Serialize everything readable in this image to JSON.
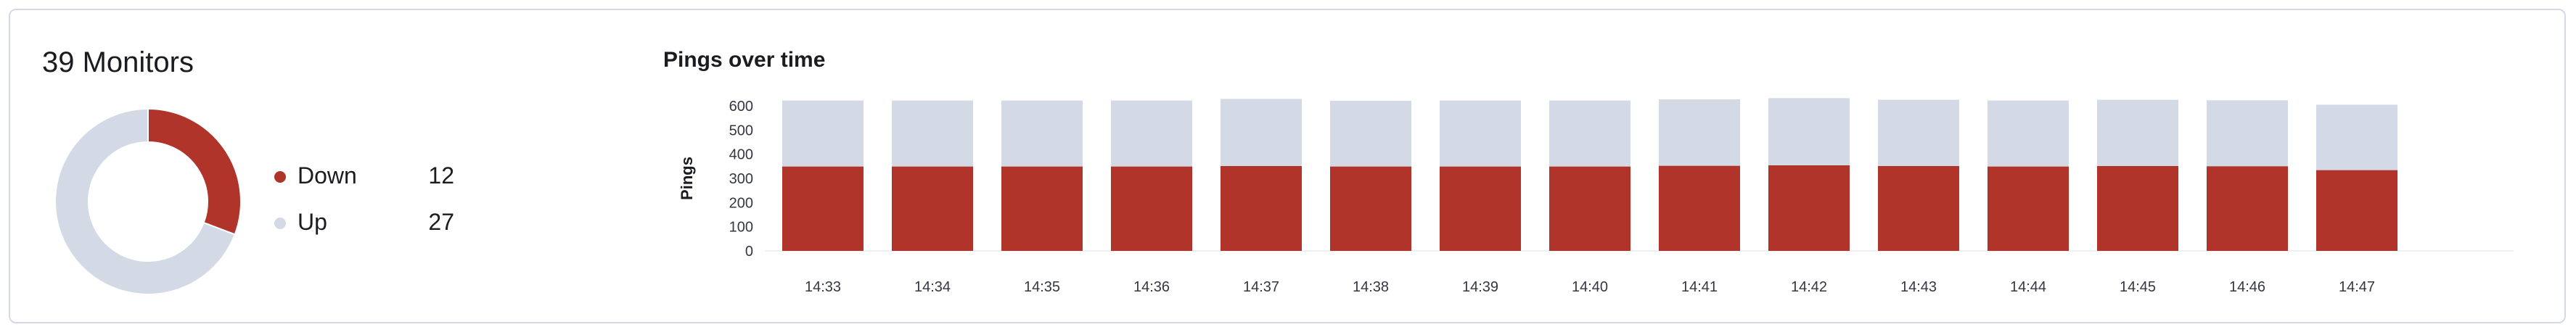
{
  "monitors": {
    "title": "39 Monitors",
    "legend": [
      {
        "label": "Down",
        "count": "12",
        "color": "#b0342a"
      },
      {
        "label": "Up",
        "count": "27",
        "color": "#d3dae6"
      }
    ]
  },
  "colors": {
    "down": "#b0342a",
    "up": "#d3dae6",
    "axis": "#eef0f4",
    "tick_text": "#343741"
  },
  "pings": {
    "title": "Pings over time"
  },
  "chart_data": [
    {
      "type": "pie",
      "categories": [
        "Down",
        "Up"
      ],
      "values": [
        12,
        27
      ],
      "title": "39 Monitors"
    },
    {
      "type": "bar",
      "stacked": true,
      "title": "Pings over time",
      "xlabel": "",
      "ylabel": "Pings",
      "ylim": [
        0,
        600
      ],
      "yticks": [
        0,
        100,
        200,
        300,
        400,
        500,
        600
      ],
      "categories": [
        "14:33",
        "14:34",
        "14:35",
        "14:36",
        "14:37",
        "14:38",
        "14:39",
        "14:40",
        "14:41",
        "14:42",
        "14:43",
        "14:44",
        "14:45",
        "14:46",
        "14:47"
      ],
      "series": [
        {
          "name": "Down",
          "values": [
            349,
            349,
            349,
            349,
            351,
            349,
            349,
            349,
            352,
            354,
            351,
            349,
            351,
            350,
            334
          ]
        },
        {
          "name": "Up",
          "values": [
            273,
            273,
            273,
            273,
            278,
            272,
            273,
            273,
            275,
            278,
            274,
            273,
            274,
            273,
            271
          ]
        }
      ]
    }
  ]
}
